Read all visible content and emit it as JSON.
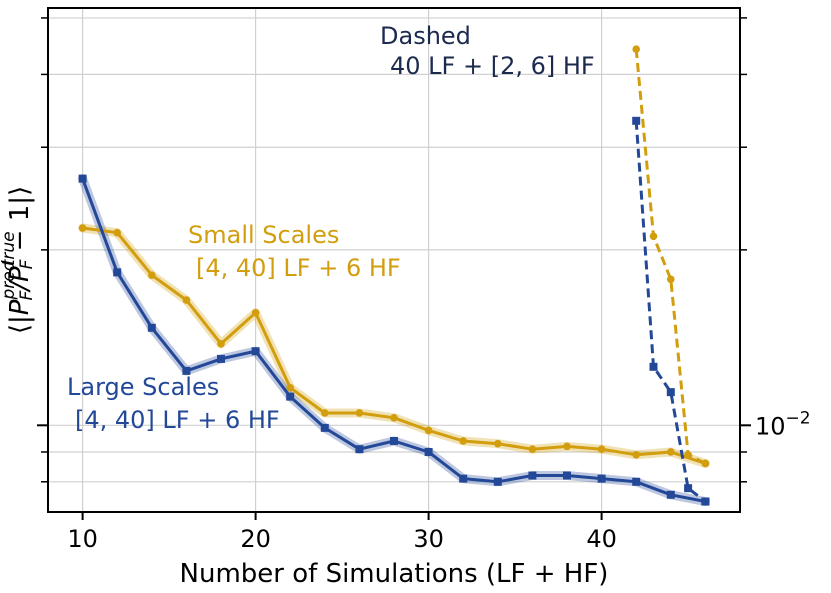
{
  "chart_data": {
    "type": "line",
    "title": "",
    "xlabel": "Number of Simulations (LF + HF)",
    "ylabel": "⟨|P_F^pred / P_F^true − 1|⟩",
    "xlim": [
      8,
      48
    ],
    "ylim": [
      0.0071,
      0.052
    ],
    "yscale": "log",
    "xticks": [
      10,
      20,
      30,
      40
    ],
    "yticks": [
      {
        "value": 0.01,
        "base": "10",
        "exp": "−2"
      }
    ],
    "grid": true,
    "colors": {
      "small": "#D29E0E",
      "large": "#234897",
      "dashed_label": "#1B2A4D"
    },
    "series": [
      {
        "name": "Small Scales",
        "style": "solid",
        "marker": "circle",
        "color": "#D29E0E",
        "x": [
          10,
          12,
          14,
          16,
          18,
          20,
          22,
          24,
          26,
          28,
          30,
          32,
          34,
          36,
          38,
          40,
          42,
          44,
          46
        ],
        "y": [
          0.0218,
          0.0214,
          0.0181,
          0.0164,
          0.0138,
          0.0156,
          0.0116,
          0.0105,
          0.0105,
          0.0103,
          0.0098,
          0.0094,
          0.0093,
          0.0091,
          0.0092,
          0.0091,
          0.0089,
          0.009,
          0.0086
        ]
      },
      {
        "name": "Large Scales",
        "style": "solid",
        "marker": "square",
        "color": "#234897",
        "x": [
          10,
          12,
          14,
          16,
          18,
          20,
          22,
          24,
          26,
          28,
          30,
          32,
          34,
          36,
          38,
          40,
          42,
          44,
          46
        ],
        "y": [
          0.0265,
          0.0183,
          0.0147,
          0.0124,
          0.013,
          0.0134,
          0.0112,
          0.0099,
          0.0091,
          0.0094,
          0.009,
          0.0081,
          0.008,
          0.0082,
          0.0082,
          0.0081,
          0.008,
          0.0076,
          0.0074
        ]
      },
      {
        "name": "Dashed Small",
        "style": "dashed",
        "marker": "circle",
        "color": "#D29E0E",
        "x": [
          42,
          43,
          44,
          45,
          46
        ],
        "y": [
          0.0442,
          0.0211,
          0.0178,
          0.0089,
          0.0086
        ]
      },
      {
        "name": "Dashed Large",
        "style": "dashed",
        "marker": "square",
        "color": "#234897",
        "x": [
          42,
          43,
          44,
          45,
          46
        ],
        "y": [
          0.0333,
          0.0126,
          0.0114,
          0.0078,
          0.0074
        ]
      }
    ],
    "annotations": [
      {
        "key": "dashed",
        "lines": [
          "Dashed",
          "40 LF + [2, 6] HF"
        ],
        "color": "#1B2A4D"
      },
      {
        "key": "small",
        "lines": [
          "Small Scales",
          "[4, 40] LF + 6 HF"
        ],
        "color": "#D29E0E"
      },
      {
        "key": "large",
        "lines": [
          "Large Scales",
          "[4, 40] LF + 6 HF"
        ],
        "color": "#234897"
      }
    ]
  }
}
